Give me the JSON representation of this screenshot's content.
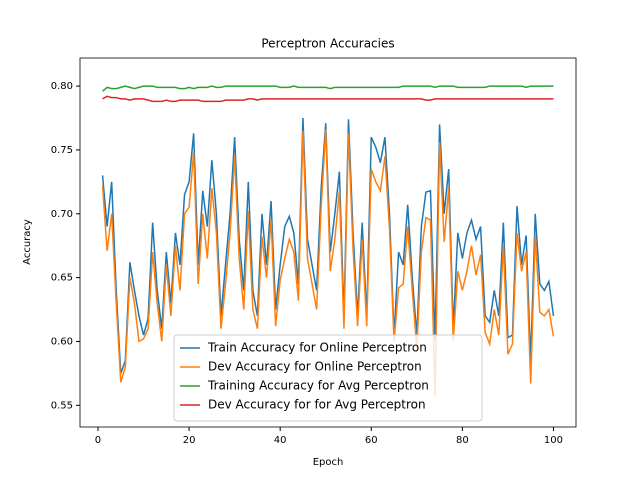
{
  "chart_data": {
    "type": "line",
    "title": "Perceptron Accuracies",
    "x_label": "Epoch",
    "y_label": "Accuracy",
    "x": [
      1,
      2,
      3,
      4,
      5,
      6,
      7,
      8,
      9,
      10,
      11,
      12,
      13,
      14,
      15,
      16,
      17,
      18,
      19,
      20,
      21,
      22,
      23,
      24,
      25,
      26,
      27,
      28,
      29,
      30,
      31,
      32,
      33,
      34,
      35,
      36,
      37,
      38,
      39,
      40,
      41,
      42,
      43,
      44,
      45,
      46,
      47,
      48,
      49,
      50,
      51,
      52,
      53,
      54,
      55,
      56,
      57,
      58,
      59,
      60,
      61,
      62,
      63,
      64,
      65,
      66,
      67,
      68,
      69,
      70,
      71,
      72,
      73,
      74,
      75,
      76,
      77,
      78,
      79,
      80,
      81,
      82,
      83,
      84,
      85,
      86,
      87,
      88,
      89,
      90,
      91,
      92,
      93,
      94,
      95,
      96,
      97,
      98,
      99,
      100
    ],
    "series": [
      {
        "name": "Train Accuracy for Online Perceptron",
        "color": "#1f77b4",
        "values": [
          0.73,
          0.69,
          0.725,
          0.64,
          0.575,
          0.585,
          0.662,
          0.64,
          0.62,
          0.605,
          0.618,
          0.693,
          0.64,
          0.61,
          0.67,
          0.63,
          0.685,
          0.66,
          0.715,
          0.725,
          0.763,
          0.66,
          0.718,
          0.69,
          0.742,
          0.7,
          0.62,
          0.66,
          0.7,
          0.76,
          0.68,
          0.64,
          0.725,
          0.64,
          0.62,
          0.7,
          0.66,
          0.71,
          0.625,
          0.66,
          0.69,
          0.698,
          0.685,
          0.645,
          0.775,
          0.68,
          0.66,
          0.64,
          0.72,
          0.771,
          0.67,
          0.7,
          0.733,
          0.62,
          0.774,
          0.685,
          0.62,
          0.693,
          0.62,
          0.76,
          0.752,
          0.74,
          0.76,
          0.7,
          0.605,
          0.67,
          0.66,
          0.707,
          0.65,
          0.605,
          0.69,
          0.717,
          0.718,
          0.6,
          0.77,
          0.7,
          0.735,
          0.61,
          0.685,
          0.665,
          0.685,
          0.695,
          0.68,
          0.69,
          0.62,
          0.615,
          0.64,
          0.62,
          0.693,
          0.603,
          0.605,
          0.706,
          0.66,
          0.683,
          0.585,
          0.7,
          0.645,
          0.64,
          0.647,
          0.62
        ]
      },
      {
        "name": "Dev Accuracy for Online Perceptron",
        "color": "#ff7f0e",
        "values": [
          0.722,
          0.671,
          0.7,
          0.63,
          0.568,
          0.58,
          0.65,
          0.63,
          0.6,
          0.602,
          0.61,
          0.67,
          0.63,
          0.6,
          0.66,
          0.62,
          0.675,
          0.64,
          0.7,
          0.705,
          0.748,
          0.645,
          0.7,
          0.665,
          0.72,
          0.685,
          0.61,
          0.645,
          0.685,
          0.745,
          0.665,
          0.625,
          0.702,
          0.625,
          0.61,
          0.682,
          0.65,
          0.695,
          0.612,
          0.648,
          0.665,
          0.68,
          0.67,
          0.632,
          0.765,
          0.665,
          0.645,
          0.625,
          0.705,
          0.766,
          0.655,
          0.68,
          0.718,
          0.61,
          0.763,
          0.672,
          0.612,
          0.68,
          0.612,
          0.735,
          0.725,
          0.718,
          0.745,
          0.688,
          0.6,
          0.642,
          0.645,
          0.69,
          0.64,
          0.595,
          0.67,
          0.697,
          0.695,
          0.557,
          0.756,
          0.678,
          0.72,
          0.6,
          0.655,
          0.64,
          0.655,
          0.675,
          0.652,
          0.668,
          0.607,
          0.598,
          0.625,
          0.605,
          0.675,
          0.59,
          0.598,
          0.685,
          0.655,
          0.67,
          0.567,
          0.683,
          0.623,
          0.62,
          0.625,
          0.604
        ]
      },
      {
        "name": "Training Accuracy for Avg Perceptron",
        "color": "#2ca02c",
        "values": [
          0.796,
          0.799,
          0.798,
          0.798,
          0.799,
          0.8,
          0.799,
          0.798,
          0.799,
          0.8,
          0.8,
          0.8,
          0.799,
          0.799,
          0.799,
          0.799,
          0.799,
          0.798,
          0.798,
          0.799,
          0.798,
          0.799,
          0.799,
          0.799,
          0.8,
          0.799,
          0.799,
          0.8,
          0.8,
          0.8,
          0.8,
          0.8,
          0.8,
          0.8,
          0.8,
          0.8,
          0.8,
          0.8,
          0.8,
          0.799,
          0.799,
          0.799,
          0.8,
          0.799,
          0.799,
          0.799,
          0.799,
          0.799,
          0.799,
          0.799,
          0.798,
          0.799,
          0.799,
          0.799,
          0.799,
          0.799,
          0.799,
          0.799,
          0.799,
          0.799,
          0.799,
          0.799,
          0.799,
          0.799,
          0.799,
          0.799,
          0.8,
          0.8,
          0.8,
          0.8,
          0.8,
          0.8,
          0.8,
          0.799,
          0.8,
          0.8,
          0.8,
          0.8,
          0.799,
          0.799,
          0.799,
          0.799,
          0.799,
          0.799,
          0.799,
          0.8,
          0.8,
          0.8,
          0.8,
          0.8,
          0.8,
          0.8,
          0.8,
          0.799,
          0.8,
          0.8,
          0.8,
          0.8,
          0.8,
          0.8
        ]
      },
      {
        "name": "Dev Accuracy for for Avg Perceptron",
        "color": "#d62728",
        "values": [
          0.79,
          0.792,
          0.791,
          0.791,
          0.79,
          0.79,
          0.789,
          0.79,
          0.79,
          0.79,
          0.789,
          0.788,
          0.788,
          0.788,
          0.789,
          0.788,
          0.788,
          0.789,
          0.789,
          0.789,
          0.789,
          0.789,
          0.788,
          0.788,
          0.788,
          0.788,
          0.788,
          0.789,
          0.789,
          0.789,
          0.789,
          0.789,
          0.79,
          0.79,
          0.789,
          0.79,
          0.79,
          0.79,
          0.79,
          0.79,
          0.79,
          0.79,
          0.79,
          0.79,
          0.79,
          0.79,
          0.79,
          0.79,
          0.79,
          0.79,
          0.79,
          0.79,
          0.79,
          0.79,
          0.79,
          0.79,
          0.79,
          0.79,
          0.79,
          0.79,
          0.79,
          0.79,
          0.79,
          0.79,
          0.79,
          0.79,
          0.79,
          0.79,
          0.79,
          0.79,
          0.79,
          0.789,
          0.789,
          0.79,
          0.79,
          0.79,
          0.79,
          0.79,
          0.79,
          0.79,
          0.79,
          0.79,
          0.79,
          0.79,
          0.79,
          0.79,
          0.79,
          0.79,
          0.79,
          0.79,
          0.79,
          0.79,
          0.79,
          0.79,
          0.79,
          0.79,
          0.79,
          0.79,
          0.79,
          0.79
        ]
      }
    ],
    "xlim": [
      -3.95,
      104.95
    ],
    "xticks": [
      0,
      20,
      40,
      60,
      80,
      100
    ],
    "ylim": [
      0.533,
      0.822
    ],
    "yticks": [
      0.55,
      {
        "value": 0.6,
        "label": "0.60"
      },
      0.65,
      {
        "value": 0.7,
        "label": "0.70"
      },
      0.75,
      {
        "value": 0.8,
        "label": "0.80"
      }
    ],
    "legend": "lower center"
  }
}
